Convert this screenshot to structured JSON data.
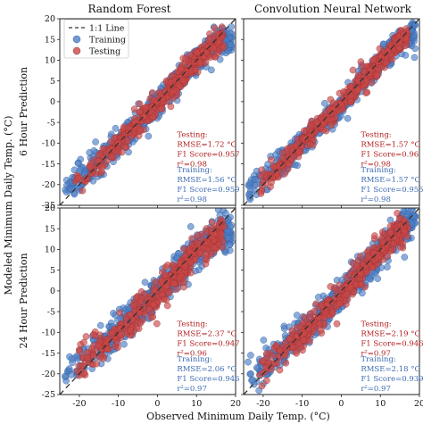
{
  "figure": {
    "ylabel_global": "Modeled Minimum Daily Temp. (°C)",
    "xlabel_global": "Observed Minimum Daily Temp. (°C)",
    "col_titles": [
      "Random Forest",
      "Convolution Neural Network"
    ],
    "row_labels": [
      "6 Hour Prediction",
      "24 Hour Prediction"
    ],
    "legend": {
      "items": [
        "1:1 Line",
        "Training",
        "Testing"
      ],
      "placement": "upper-left of top-left panel"
    },
    "colors": {
      "training": "#4f7fc4",
      "testing": "#c94848",
      "testing_text": "#b22222",
      "training_text": "#3f6db3",
      "line": "#333333"
    }
  },
  "chart_data": [
    {
      "type": "scatter",
      "model": "Random Forest",
      "horizon": "6 Hour",
      "xlim": [
        -25,
        20
      ],
      "ylim": [
        -25,
        20
      ],
      "xticks": [
        "-20",
        "-10",
        "0",
        "10",
        "20"
      ],
      "yticks": [
        "-25",
        "-20",
        "-15",
        "-10",
        "-5",
        "0",
        "5",
        "10",
        "15",
        "20"
      ],
      "series": [
        {
          "name": "Training",
          "trend_x": [
            -24,
            -15,
            -5,
            0,
            5,
            10,
            15,
            18
          ],
          "trend_y": [
            -21,
            -14.5,
            -5.5,
            -0.5,
            4.8,
            9.8,
            14.5,
            15
          ]
        },
        {
          "name": "Testing",
          "trend_x": [
            -20,
            -10,
            0,
            10,
            16
          ],
          "trend_y": [
            -19,
            -10,
            -0.5,
            10,
            15
          ]
        }
      ],
      "testing": {
        "title": "Testing:",
        "rmse": "RMSE=1.72 °C",
        "f1": "F1 Score=0.957",
        "r2": "r²=0.98"
      },
      "training": {
        "title": "Training:",
        "rmse": "RMSE=1.56 °C",
        "f1": "F1 Score=0.959",
        "r2": "r²=0.98"
      }
    },
    {
      "type": "scatter",
      "model": "Convolution Neural Network",
      "horizon": "6 Hour",
      "xlim": [
        -25,
        20
      ],
      "ylim": [
        -25,
        20
      ],
      "xticks": [
        "-20",
        "-10",
        "0",
        "10",
        "20"
      ],
      "yticks": [
        "-25",
        "-20",
        "-15",
        "-10",
        "-5",
        "0",
        "5",
        "10",
        "15",
        "20"
      ],
      "series": [
        {
          "name": "Training",
          "trend_x": [
            -24,
            -15,
            -5,
            0,
            5,
            10,
            15,
            18
          ],
          "trend_y": [
            -22,
            -14.5,
            -5.2,
            -0.3,
            4.8,
            9.8,
            14.5,
            16.5
          ]
        },
        {
          "name": "Testing",
          "trend_x": [
            -20,
            -10,
            0,
            10,
            16
          ],
          "trend_y": [
            -19.5,
            -10,
            -0.5,
            9.8,
            15.5
          ]
        }
      ],
      "testing": {
        "title": "Testing:",
        "rmse": "RMSE=1.57 °C",
        "f1": "F1 Score=0.96",
        "r2": "r²=0.98"
      },
      "training": {
        "title": "Training:",
        "rmse": "RMSE=1.57 °C",
        "f1": "F1 Score=0.955",
        "r2": "r²=0.98"
      }
    },
    {
      "type": "scatter",
      "model": "Random Forest",
      "horizon": "24 Hour",
      "xlim": [
        -25,
        20
      ],
      "ylim": [
        -25,
        20
      ],
      "xticks": [
        "-20",
        "-10",
        "0",
        "10",
        "20"
      ],
      "yticks": [
        "-25",
        "-20",
        "-15",
        "-10",
        "-5",
        "0",
        "5",
        "10",
        "15",
        "20"
      ],
      "series": [
        {
          "name": "Training",
          "trend_x": [
            -24,
            -15,
            -5,
            0,
            5,
            10,
            15,
            18
          ],
          "trend_y": [
            -20,
            -13.5,
            -5,
            -0.5,
            4.5,
            9.5,
            13.8,
            14.5
          ]
        },
        {
          "name": "Testing",
          "trend_x": [
            -20,
            -10,
            0,
            10,
            16
          ],
          "trend_y": [
            -18,
            -10,
            -1,
            9.5,
            14
          ]
        }
      ],
      "testing": {
        "title": "Testing:",
        "rmse": "RMSE=2.37 °C",
        "f1": "F1 Score=0.947",
        "r2": "r²=0.96"
      },
      "training": {
        "title": "Training:",
        "rmse": "RMSE=2.06 °C",
        "f1": "F1 Score=0.946",
        "r2": "r²=0.97"
      }
    },
    {
      "type": "scatter",
      "model": "Convolution Neural Network",
      "horizon": "24 Hour",
      "xlim": [
        -25,
        20
      ],
      "ylim": [
        -25,
        20
      ],
      "xticks": [
        "-20",
        "-10",
        "0",
        "10",
        "20"
      ],
      "yticks": [
        "-25",
        "-20",
        "-15",
        "-10",
        "-5",
        "0",
        "5",
        "10",
        "15",
        "20"
      ],
      "series": [
        {
          "name": "Training",
          "trend_x": [
            -24,
            -15,
            -5,
            0,
            5,
            10,
            15,
            18
          ],
          "trend_y": [
            -21,
            -14,
            -5.5,
            -0.5,
            4.5,
            9.5,
            14.5,
            16
          ]
        },
        {
          "name": "Testing",
          "trend_x": [
            -20,
            -10,
            0,
            10,
            16
          ],
          "trend_y": [
            -19,
            -10.5,
            -1,
            9.5,
            15
          ]
        }
      ],
      "testing": {
        "title": "Testing:",
        "rmse": "RMSE=2.19 °C",
        "f1": "F1 Score=0.946",
        "r2": "r²=0.97"
      },
      "training": {
        "title": "Training:",
        "rmse": "RMSE=2.18 °C",
        "f1": "F1 Score=0.939",
        "r2": "r²=0.97"
      }
    }
  ]
}
